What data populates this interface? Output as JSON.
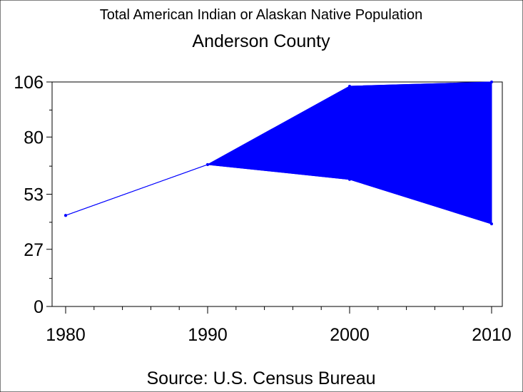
{
  "chart_data": {
    "type": "area",
    "title": "Total American Indian or Alaskan Native Population",
    "subtitle": "Anderson County",
    "source": "Source: U.S. Census Bureau",
    "x": [
      1980,
      1990,
      2000,
      2010
    ],
    "xlabels": [
      "1980",
      "1990",
      "2000",
      "2010"
    ],
    "xlim": [
      1980,
      2010
    ],
    "yticks": [
      0,
      27,
      53,
      80,
      106
    ],
    "ylim": [
      0,
      106
    ],
    "grid": false,
    "series": [
      {
        "values": [
          43,
          67,
          104,
          106
        ]
      },
      {
        "values": [
          43,
          67,
          60,
          39
        ]
      }
    ],
    "band_start_x": 1990,
    "colors": {
      "fill": "#0000ff",
      "line": "#0000ff",
      "axis": "#000000"
    }
  }
}
